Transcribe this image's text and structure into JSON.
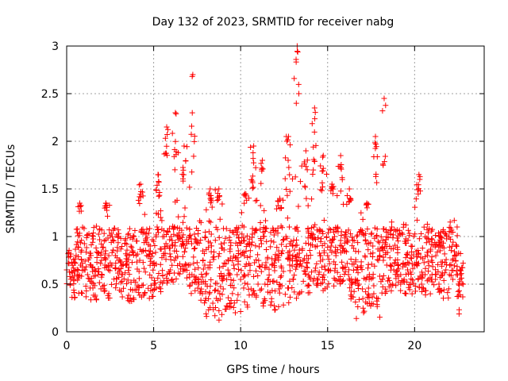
{
  "chart_data": {
    "type": "scatter",
    "title": "Day 132 of 2023, SRMTID for receiver nabg",
    "xlabel": "GPS time / hours",
    "ylabel": "SRMTID / TECUs",
    "xlim": [
      0,
      24
    ],
    "ylim": [
      0,
      3
    ],
    "xticks": [
      0,
      5,
      10,
      15,
      20
    ],
    "xtick_labels": [
      "0",
      "5",
      "10",
      "15",
      "20"
    ],
    "yticks": [
      0,
      0.5,
      1,
      1.5,
      2,
      2.5,
      3
    ],
    "ytick_labels": [
      "0",
      "0.5",
      "1",
      "1.5",
      "2",
      "2.5",
      "3"
    ],
    "grid": true,
    "marker": "plus",
    "series": [
      {
        "name": "SRMTID",
        "color": "#ff0000",
        "x": [
          0.0,
          0.2,
          0.4,
          0.6,
          0.8,
          1.0,
          1.2,
          1.4,
          1.6,
          1.8,
          2.0,
          2.2,
          2.4,
          2.6,
          2.8,
          3.0,
          3.2,
          3.4,
          3.6,
          3.8,
          4.0,
          4.2,
          4.4,
          4.6,
          4.8,
          5.0,
          5.2,
          5.4,
          5.6,
          5.8,
          6.0,
          6.2,
          6.4,
          6.6,
          6.8,
          7.0,
          7.2,
          7.4,
          7.6,
          7.8,
          8.0,
          8.2,
          8.4,
          8.6,
          8.8,
          9.0,
          9.2,
          9.4,
          9.6,
          9.8,
          10.0,
          10.2,
          10.4,
          10.6,
          10.8,
          11.0,
          11.2,
          11.4,
          11.6,
          11.8,
          12.0,
          12.2,
          12.4,
          12.6,
          12.8,
          13.0,
          13.2,
          13.4,
          13.6,
          13.8,
          14.0,
          14.2,
          14.4,
          14.6,
          14.8,
          15.0,
          15.2,
          15.4,
          15.6,
          15.8,
          16.0,
          16.2,
          16.4,
          16.6,
          16.8,
          17.0,
          17.2,
          17.4,
          17.6,
          17.8,
          18.0,
          18.2,
          18.4,
          18.6,
          18.8,
          19.0,
          19.2,
          19.4,
          19.6,
          19.8,
          20.0,
          20.2,
          20.4,
          20.6,
          20.8,
          21.0,
          21.2,
          21.4,
          21.6,
          21.8,
          22.0,
          22.2,
          22.4,
          22.6,
          22.8
        ],
        "y": [
          0.65,
          0.5,
          0.55,
          0.6,
          0.7,
          0.65,
          0.6,
          0.7,
          0.65,
          0.6,
          0.75,
          0.7,
          0.65,
          0.7,
          0.8,
          0.75,
          0.6,
          0.7,
          0.8,
          0.85,
          0.8,
          0.75,
          0.85,
          0.8,
          0.9,
          0.95,
          1.1,
          1.2,
          1.0,
          0.9,
          1.0,
          1.1,
          1.0,
          0.9,
          1.3,
          0.7,
          0.6,
          0.55,
          0.5,
          0.4,
          0.35,
          0.4,
          0.3,
          0.35,
          0.4,
          0.45,
          0.55,
          0.6,
          0.7,
          0.6,
          0.55,
          0.6,
          0.5,
          0.45,
          0.4,
          0.5,
          0.45,
          0.5,
          0.55,
          0.7,
          0.75,
          0.8,
          0.85,
          1.0,
          1.1,
          0.8,
          0.75,
          0.7,
          0.75,
          0.8,
          1.0,
          1.1,
          0.9,
          0.8,
          0.85,
          0.8,
          0.9,
          1.0,
          1.05,
          0.9,
          0.85,
          0.6,
          0.5,
          0.55,
          0.5,
          0.45,
          0.55,
          0.6,
          0.9,
          1.0,
          0.8,
          0.75,
          0.7,
          0.7,
          0.65,
          0.6,
          0.6,
          0.55,
          0.65,
          0.9,
          0.7,
          0.55,
          0.5,
          0.6,
          0.55,
          0.6,
          0.55,
          0.5,
          0.6,
          0.65,
          0.6,
          0.55,
          0.6,
          0.65,
          0.5
        ]
      }
    ],
    "scatter_band": {
      "comment": "additional visible points represented as band extents (data units) per x bin",
      "x": [
        0.0,
        0.5,
        1.0,
        1.5,
        2.0,
        2.5,
        3.0,
        3.5,
        4.0,
        4.5,
        5.0,
        5.5,
        6.0,
        6.5,
        7.0,
        7.5,
        8.0,
        8.5,
        9.0,
        9.5,
        10.0,
        10.5,
        11.0,
        11.5,
        12.0,
        12.5,
        13.0,
        13.5,
        14.0,
        14.5,
        15.0,
        15.5,
        16.0,
        16.5,
        17.0,
        17.5,
        18.0,
        18.5,
        19.0,
        19.5,
        20.0,
        20.5,
        21.0,
        21.5,
        22.0,
        22.5
      ],
      "low": [
        0.35,
        0.3,
        0.3,
        0.3,
        0.35,
        0.35,
        0.35,
        0.3,
        0.35,
        0.35,
        0.4,
        0.5,
        0.5,
        0.5,
        0.4,
        0.3,
        0.15,
        0.1,
        0.15,
        0.2,
        0.25,
        0.3,
        0.25,
        0.2,
        0.25,
        0.3,
        0.35,
        0.4,
        0.45,
        0.4,
        0.45,
        0.5,
        0.3,
        0.1,
        0.2,
        0.15,
        0.4,
        0.4,
        0.4,
        0.35,
        0.4,
        0.35,
        0.4,
        0.35,
        0.35,
        0.15
      ],
      "high": [
        0.9,
        1.35,
        1.1,
        1.3,
        1.35,
        1.1,
        1.0,
        1.25,
        1.55,
        1.3,
        1.65,
        2.15,
        2.3,
        1.95,
        2.7,
        1.25,
        1.5,
        1.5,
        1.2,
        1.2,
        1.45,
        1.95,
        1.8,
        1.1,
        1.4,
        2.05,
        3.0,
        1.9,
        2.35,
        1.85,
        1.55,
        1.85,
        1.5,
        1.3,
        1.35,
        2.05,
        2.45,
        1.3,
        1.2,
        1.1,
        1.65,
        1.3,
        1.15,
        1.1,
        1.2,
        0.85
      ]
    }
  }
}
